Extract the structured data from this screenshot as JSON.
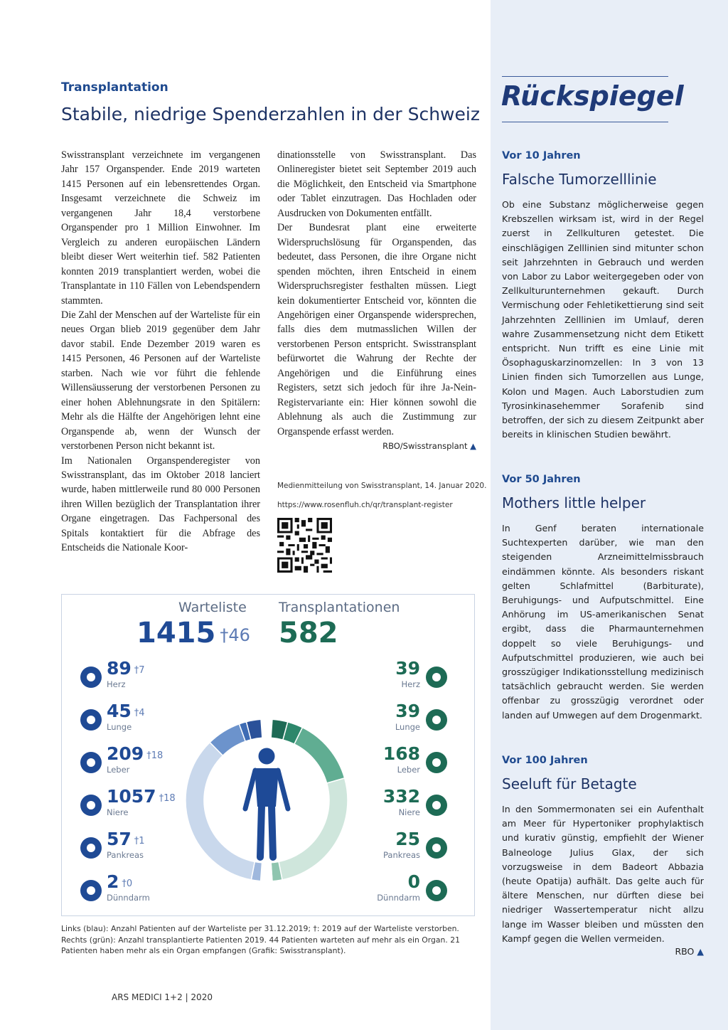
{
  "header": {
    "kicker": "Transplantation",
    "title": "Stabile, niedrige Spenderzahlen in der Schweiz"
  },
  "article": {
    "column1": [
      "Swisstransplant verzeichnete im vergangenen Jahr 157 Organspender. Ende 2019 warteten 1415 Personen auf ein lebensrettendes Organ. Insgesamt verzeichnete die Schweiz im vergangenen Jahr 18,4 verstorbene Organspender pro 1 Million Einwohner. Im Vergleich zu anderen europäischen Ländern bleibt dieser Wert weiterhin tief. 582 Patienten konnten 2019 transplantiert werden, wobei die Transplantate in 110 Fällen von Lebendspendern stammten.",
      "Die Zahl der Menschen auf der Warteliste für ein neues Organ blieb 2019 gegenüber dem Jahr davor stabil. Ende Dezember 2019 waren es 1415 Personen, 46 Personen auf der Warteliste starben. Nach wie vor führt die fehlende Willensäusserung der verstorbenen Personen zu einer hohen Ablehnungsrate in den Spitälern: Mehr als die Hälfte der Angehörigen lehnt eine Organspende ab, wenn der Wunsch der verstorbenen Person nicht bekannt ist.",
      "Im Nationalen Organspenderegister von Swisstransplant, das im Oktober 2018 lanciert wurde, haben mittlerweile rund 80 000 Personen ihren Willen bezüglich der Transplantation ihrer Organe eingetragen. Das Fachpersonal des Spitals kontaktiert für die Abfrage des Entscheids die Nationale Koor-"
    ],
    "column2": [
      "dinationsstelle von Swisstransplant. Das Onlineregister bietet seit September 2019 auch die Möglichkeit, den Entscheid via Smartphone oder Tablet einzutragen. Das Hochladen oder Ausdrucken von Dokumenten entfällt.",
      "Der Bundesrat plant eine erweiterte Widerspruchslösung für Organspenden, das bedeutet, dass Personen, die ihre Organe nicht spenden möchten, ihren Entscheid in einem Widerspruchsregister festhalten müssen. Liegt kein dokumentierter Entscheid vor, könnten die Angehörigen einer Organspende widersprechen, falls dies dem mutmasslichen Willen der verstorbenen Person entspricht. Swisstransplant befürwortet die Wahrung der Rechte der Angehörigen und die Einführung eines Registers, setzt sich jedoch für ihre Ja-Nein-Registervariante ein: Hier können sowohl die Ablehnung als auch die Zustimmung zur Organspende erfasst werden."
    ],
    "signature": "RBO/Swisstransplant",
    "source": "Medienmitteilung von Swisstransplant, 14. Januar 2020.",
    "url": "https://www.rosenfluh.ch/qr/transplant-register"
  },
  "infographic": {
    "waiting_title": "Warteliste",
    "waiting_total": 1415,
    "waiting_deaths": "†46",
    "transplant_title": "Transplantationen",
    "transplant_total": 582,
    "organs": [
      {
        "name": "Herz",
        "waiting": 89,
        "deaths": "†7",
        "transplants": 39
      },
      {
        "name": "Lunge",
        "waiting": 45,
        "deaths": "†4",
        "transplants": 39
      },
      {
        "name": "Leber",
        "waiting": 209,
        "deaths": "†18",
        "transplants": 168
      },
      {
        "name": "Niere",
        "waiting": 1057,
        "deaths": "†18",
        "transplants": 332
      },
      {
        "name": "Pankreas",
        "waiting": 57,
        "deaths": "†1",
        "transplants": 25
      },
      {
        "name": "Dünndarm",
        "waiting": 2,
        "deaths": "†0",
        "transplants": 0
      }
    ],
    "caption": "Links (blau): Anzahl Patienten auf der Warteliste per 31.12.2019; †: 2019 auf der Warteliste verstorben. Rechts (grün): Anzahl transplantierte Patienten 2019. 44 Patienten warteten auf mehr als ein Organ. 21 Patienten haben mehr als ein Organ empfangen (Grafik: Swisstransplant)."
  },
  "footer": "ARS MEDICI 1+2 | 2020",
  "sidebar": {
    "title": "Rückspiegel",
    "sections": [
      {
        "kicker": "Vor 10 Jahren",
        "title": "Falsche Tumorzelllinie",
        "text": "Ob eine Substanz möglicherweise gegen Krebszellen wirksam ist, wird in der Regel zuerst in Zellkulturen getestet. Die einschlägigen Zelllinien sind mitunter schon seit Jahrzehnten in Gebrauch und werden von Labor zu Labor weitergegeben oder von Zellkulturunternehmen gekauft. Durch Vermischung oder Fehletikettierung sind seit Jahrzehnten Zelllinien im Umlauf, deren wahre Zusammensetzung nicht dem Etikett entspricht. Nun trifft es eine Linie mit Ösophaguskarzinomzellen: In 3 von 13 Linien finden sich Tumorzellen aus Lunge, Kolon und Magen. Auch Laborstudien zum Tyrosinkinasehemmer Sorafenib sind betroffen, der sich zu diesem Zeitpunkt aber bereits in klinischen Studien bewährt."
      },
      {
        "kicker": "Vor 50 Jahren",
        "title": "Mothers little helper",
        "text": "In Genf beraten internationale Suchtexperten darüber, wie man den steigenden Arzneimittelmissbrauch eindämmen könnte. Als besonders riskant gelten Schlafmittel (Barbiturate), Beruhigungs- und Aufputschmittel. Eine Anhörung im US-amerikanischen Senat ergibt, dass die Pharmaunternehmen doppelt so viele Beruhigungs- und Aufputschmittel produzieren, wie auch bei grosszügiger Indikationsstellung medizinisch tatsächlich gebraucht werden. Sie werden offenbar zu grosszügig verordnet oder landen auf Umwegen auf dem Drogenmarkt."
      },
      {
        "kicker": "Vor 100 Jahren",
        "title": "Seeluft für Betagte",
        "text": "In den Sommermonaten sei ein Aufenthalt am Meer für Hypertoniker prophylaktisch und kurativ günstig, empfiehlt der Wiener Balneologe Julius Glax, der sich vorzugsweise in dem Badeort Abbazia (heute Opatija) aufhält. Das gelte auch für ältere Menschen, nur dürften diese bei niedriger Wassertemperatur nicht allzu lange im Wasser bleiben und müssten den Kampf gegen die Wellen vermeiden.",
        "signature": "RBO"
      }
    ]
  }
}
